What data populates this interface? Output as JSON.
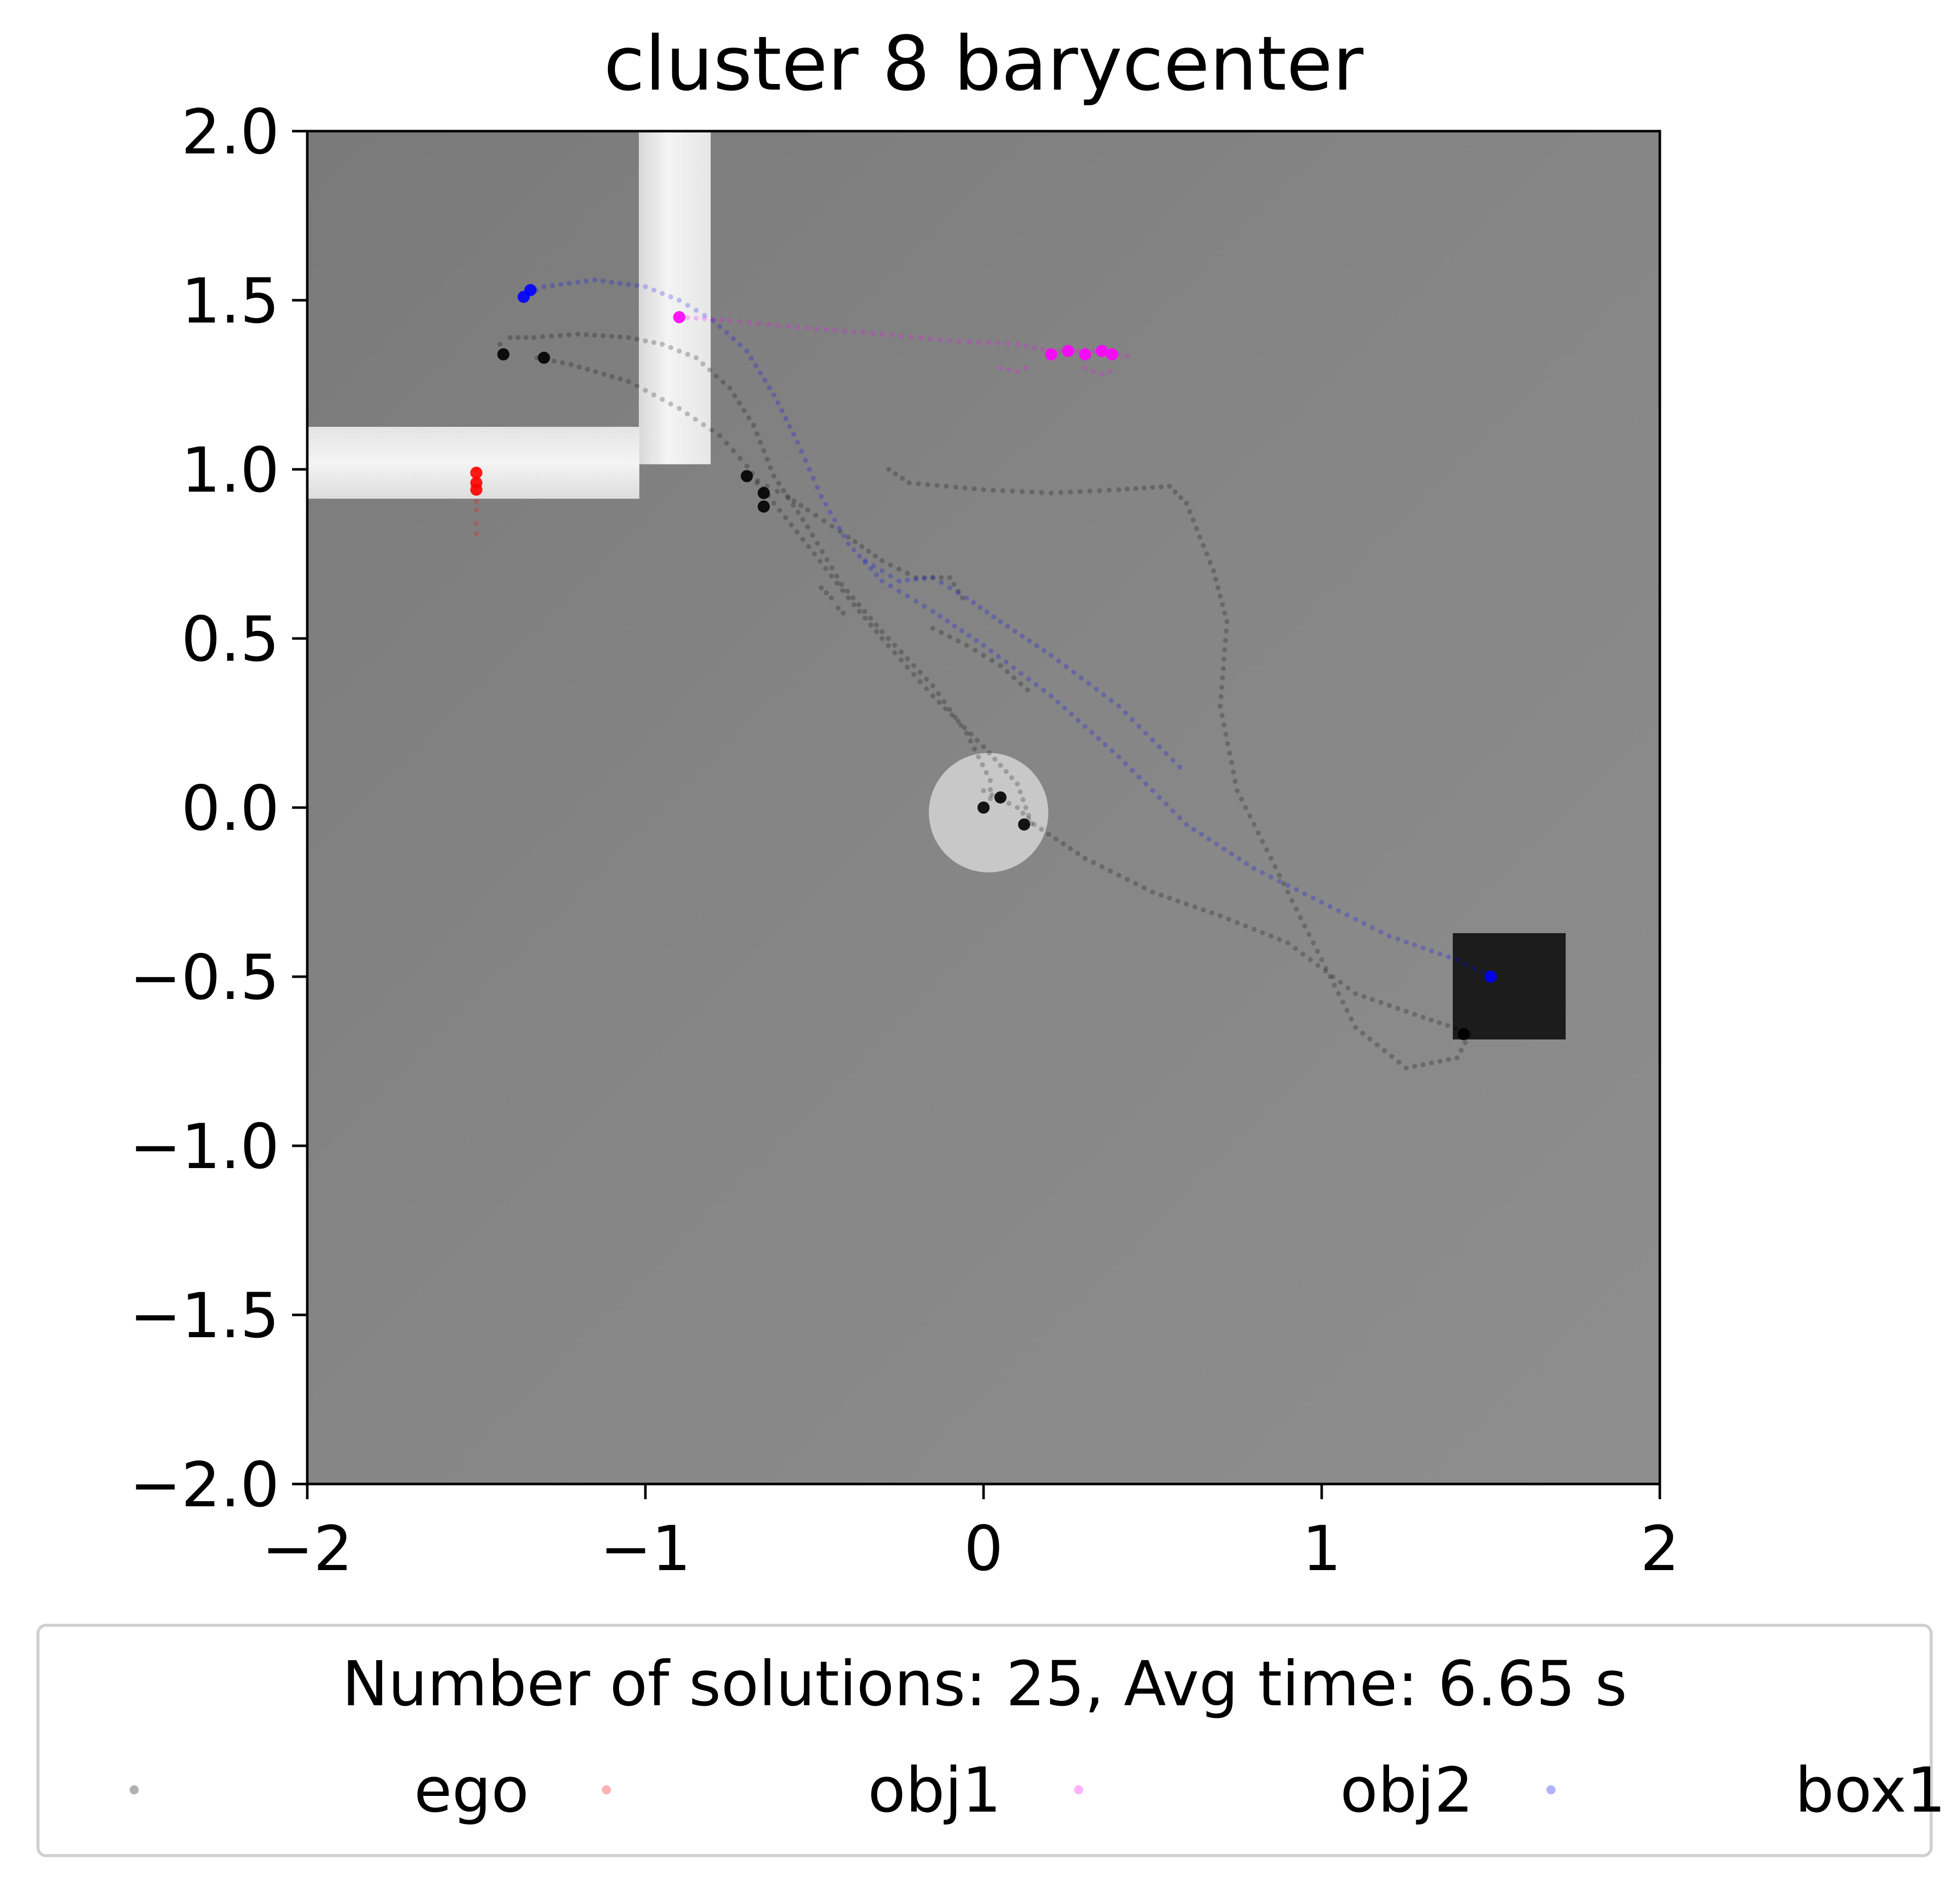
{
  "chart_data": {
    "type": "scatter",
    "title": "cluster 8 barycenter",
    "xlabel": "",
    "ylabel": "",
    "xlim": [
      -2,
      2
    ],
    "ylim": [
      -2,
      2
    ],
    "xticks": [
      -2,
      -1,
      0,
      1,
      2
    ],
    "xtick_labels": [
      "−2",
      "−1",
      "0",
      "1",
      "2"
    ],
    "yticks": [
      2.0,
      1.5,
      1.0,
      0.5,
      0.0,
      -0.5,
      -1.0,
      -1.5,
      -2.0
    ],
    "ytick_labels": [
      "2.0",
      "1.5",
      "1.0",
      "0.5",
      "0.0",
      "−0.5",
      "−1.0",
      "−1.5",
      "−2.0"
    ],
    "grid": false,
    "legend": {
      "title": "Number of solutions: 25, Avg time: 6.65 s",
      "placement": "below",
      "entries": [
        "ego",
        "obj1",
        "obj2",
        "box1"
      ]
    },
    "colors": {
      "ego": "#000000",
      "obj1": "#ff0000",
      "obj2": "#ff00ff",
      "box1": "#0000ff",
      "background": "#858585",
      "walls": "#f0f0f0",
      "goal_box": "#1a1a1a",
      "circle": "#c6c6c6"
    },
    "series": [
      {
        "name": "ego",
        "paths": [
          [
            [
              -1.43,
              1.37
            ],
            [
              -1.4,
              1.39
            ],
            [
              -1.33,
              1.39
            ],
            [
              -1.2,
              1.4
            ],
            [
              -1.05,
              1.39
            ],
            [
              -0.95,
              1.37
            ],
            [
              -0.85,
              1.33
            ],
            [
              -0.75,
              1.24
            ],
            [
              -0.68,
              1.13
            ],
            [
              -0.62,
              0.98
            ],
            [
              -0.52,
              0.83
            ],
            [
              -0.42,
              0.66
            ],
            [
              -0.3,
              0.52
            ],
            [
              -0.15,
              0.36
            ],
            [
              -0.05,
              0.22
            ],
            [
              0.02,
              0.08
            ],
            [
              0.02,
              0.0
            ]
          ],
          [
            [
              -1.32,
              1.33
            ],
            [
              -1.22,
              1.31
            ],
            [
              -1.05,
              1.26
            ],
            [
              -0.9,
              1.18
            ],
            [
              -0.78,
              1.1
            ],
            [
              -0.7,
              1.01
            ],
            [
              -0.62,
              0.9
            ],
            [
              -0.5,
              0.75
            ],
            [
              -0.4,
              0.62
            ],
            [
              -0.3,
              0.5
            ],
            [
              -0.15,
              0.33
            ],
            [
              0.0,
              0.18
            ],
            [
              0.1,
              0.07
            ],
            [
              0.15,
              -0.07
            ]
          ],
          [
            [
              -0.28,
              1.0
            ],
            [
              -0.22,
              0.96
            ],
            [
              0.0,
              0.94
            ],
            [
              0.2,
              0.93
            ],
            [
              0.4,
              0.94
            ],
            [
              0.55,
              0.95
            ],
            [
              0.6,
              0.9
            ],
            [
              0.68,
              0.7
            ],
            [
              0.72,
              0.55
            ],
            [
              0.7,
              0.3
            ],
            [
              0.75,
              0.05
            ],
            [
              0.9,
              -0.25
            ],
            [
              1.0,
              -0.45
            ],
            [
              1.1,
              -0.65
            ],
            [
              1.25,
              -0.77
            ],
            [
              1.4,
              -0.74
            ],
            [
              1.45,
              -0.65
            ]
          ],
          [
            [
              -0.7,
              0.97
            ],
            [
              -0.64,
              0.95
            ],
            [
              -0.58,
              0.92
            ],
            [
              -0.52,
              0.88
            ],
            [
              -0.4,
              0.8
            ],
            [
              -0.3,
              0.73
            ],
            [
              -0.2,
              0.68
            ],
            [
              -0.1,
              0.68
            ],
            [
              -0.05,
              0.6
            ]
          ],
          [
            [
              0.0,
              0.05
            ],
            [
              0.1,
              0.0
            ],
            [
              0.15,
              -0.05
            ],
            [
              0.3,
              -0.15
            ],
            [
              0.5,
              -0.25
            ],
            [
              0.7,
              -0.32
            ],
            [
              0.9,
              -0.4
            ],
            [
              1.1,
              -0.55
            ],
            [
              1.3,
              -0.62
            ],
            [
              1.42,
              -0.66
            ]
          ],
          [
            [
              -0.48,
              0.65
            ],
            [
              -0.45,
              0.62
            ],
            [
              -0.43,
              0.59
            ],
            [
              -0.4,
              0.56
            ]
          ],
          [
            [
              -0.15,
              0.53
            ],
            [
              -0.05,
              0.48
            ],
            [
              0.05,
              0.42
            ],
            [
              0.15,
              0.33
            ]
          ]
        ],
        "clusters": [
          [
            -1.42,
            1.34
          ],
          [
            -1.3,
            1.33
          ],
          [
            -0.7,
            0.98
          ],
          [
            -0.65,
            0.93
          ],
          [
            -0.65,
            0.89
          ],
          [
            0.0,
            0.0
          ],
          [
            0.12,
            -0.05
          ],
          [
            0.05,
            0.03
          ],
          [
            1.42,
            -0.67
          ]
        ]
      },
      {
        "name": "obj1",
        "paths": [
          [
            [
              -1.5,
              1.0
            ],
            [
              -1.5,
              0.97
            ],
            [
              -1.5,
              0.93
            ],
            [
              -1.5,
              0.88
            ],
            [
              -1.5,
              0.84
            ],
            [
              -1.5,
              0.78
            ]
          ]
        ],
        "clusters": [
          [
            -1.5,
            0.99
          ],
          [
            -1.5,
            0.96
          ],
          [
            -1.5,
            0.94
          ]
        ]
      },
      {
        "name": "obj2",
        "paths": [
          [
            [
              -0.9,
              1.45
            ],
            [
              -0.75,
              1.44
            ],
            [
              -0.55,
              1.42
            ],
            [
              -0.3,
              1.4
            ],
            [
              -0.1,
              1.38
            ],
            [
              0.1,
              1.37
            ],
            [
              0.2,
              1.35
            ],
            [
              0.35,
              1.35
            ],
            [
              0.45,
              1.33
            ]
          ],
          [
            [
              0.3,
              1.3
            ],
            [
              0.35,
              1.28
            ],
            [
              0.4,
              1.3
            ]
          ],
          [
            [
              0.05,
              1.3
            ],
            [
              0.1,
              1.29
            ],
            [
              0.15,
              1.31
            ]
          ]
        ],
        "clusters": [
          [
            -0.9,
            1.45
          ],
          [
            0.2,
            1.34
          ],
          [
            0.25,
            1.35
          ],
          [
            0.3,
            1.34
          ],
          [
            0.35,
            1.35
          ],
          [
            0.38,
            1.34
          ]
        ]
      },
      {
        "name": "box1",
        "paths": [
          [
            [
              -1.37,
              1.51
            ],
            [
              -1.3,
              1.54
            ],
            [
              -1.15,
              1.56
            ],
            [
              -1.0,
              1.54
            ],
            [
              -0.9,
              1.5
            ],
            [
              -0.8,
              1.44
            ],
            [
              -0.7,
              1.35
            ],
            [
              -0.62,
              1.22
            ],
            [
              -0.55,
              1.08
            ],
            [
              -0.48,
              0.92
            ],
            [
              -0.4,
              0.78
            ],
            [
              -0.3,
              0.67
            ],
            [
              -0.15,
              0.58
            ],
            [
              0.0,
              0.48
            ],
            [
              0.2,
              0.33
            ],
            [
              0.4,
              0.15
            ],
            [
              0.6,
              -0.05
            ],
            [
              0.8,
              -0.18
            ],
            [
              1.0,
              -0.28
            ],
            [
              1.2,
              -0.38
            ],
            [
              1.4,
              -0.45
            ],
            [
              1.5,
              -0.5
            ]
          ],
          [
            [
              -0.35,
              0.73
            ],
            [
              -0.25,
              0.67
            ],
            [
              -0.15,
              0.68
            ],
            [
              -0.05,
              0.62
            ],
            [
              0.05,
              0.55
            ],
            [
              0.2,
              0.45
            ],
            [
              0.4,
              0.3
            ],
            [
              0.6,
              0.1
            ]
          ]
        ],
        "clusters": [
          [
            -1.36,
            1.51
          ],
          [
            -1.34,
            1.53
          ],
          [
            1.5,
            -0.5
          ]
        ]
      }
    ]
  }
}
